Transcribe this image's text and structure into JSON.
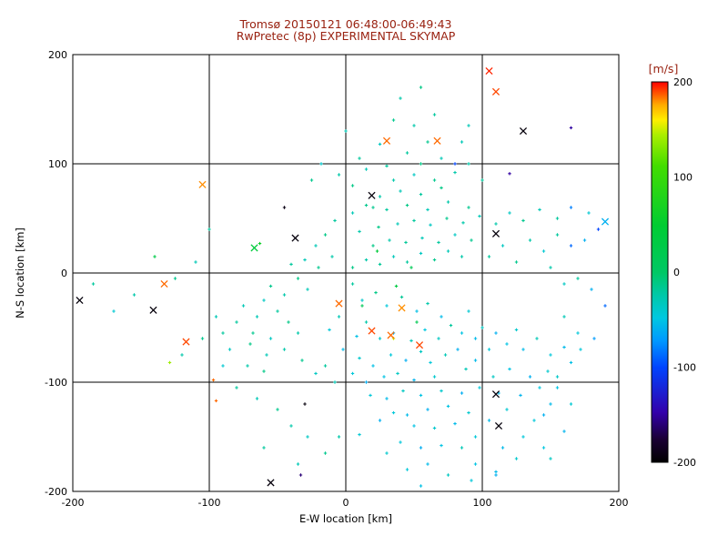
{
  "style": {
    "background": "#ffffff",
    "title_color": "#992211",
    "axis_color": "#000000"
  },
  "chart_data": {
    "type": "scatter",
    "title": "Tromsø 20150121 06:48:00-06:49:43",
    "subtitle": "RwPretec (8p) EXPERIMENTAL SKYMAP",
    "xlabel": "E-W location [km]",
    "ylabel": "N-S location [km]",
    "xlim": [
      -200,
      200
    ],
    "ylim": [
      -200,
      200
    ],
    "xticks": [
      -200,
      -100,
      0,
      100,
      200
    ],
    "yticks": [
      -200,
      -100,
      0,
      100,
      200
    ],
    "gridlines": [
      -100,
      0,
      100
    ],
    "grid": "on",
    "point_value_unit": "m/s",
    "colorbar": {
      "label": "[m/s]",
      "min": -200,
      "max": 200,
      "ticks": [
        200,
        100,
        0,
        -100,
        -200
      ],
      "stops": [
        {
          "t": 0.0,
          "c": "#000000"
        },
        {
          "t": 0.06,
          "c": "#1a0033"
        },
        {
          "t": 0.13,
          "c": "#3300aa"
        },
        {
          "t": 0.25,
          "c": "#0044ff"
        },
        {
          "t": 0.32,
          "c": "#0099ff"
        },
        {
          "t": 0.38,
          "c": "#00c8e0"
        },
        {
          "t": 0.44,
          "c": "#00c8a8"
        },
        {
          "t": 0.5,
          "c": "#00c864"
        },
        {
          "t": 0.62,
          "c": "#00cc33"
        },
        {
          "t": 0.78,
          "c": "#44dd00"
        },
        {
          "t": 0.86,
          "c": "#aaee00"
        },
        {
          "t": 0.9,
          "c": "#ffee00"
        },
        {
          "t": 0.94,
          "c": "#ffaa00"
        },
        {
          "t": 0.97,
          "c": "#ff5500"
        },
        {
          "t": 1.0,
          "c": "#ff0000"
        }
      ]
    },
    "points": [
      [
        5,
        -10,
        -20
      ],
      [
        12,
        -25,
        -38
      ],
      [
        22,
        -18,
        -12
      ],
      [
        30,
        -30,
        -45
      ],
      [
        41,
        -22,
        -18
      ],
      [
        52,
        -35,
        -52
      ],
      [
        60,
        -28,
        -25
      ],
      [
        70,
        -40,
        -55
      ],
      [
        35,
        -55,
        -60
      ],
      [
        25,
        -60,
        -40
      ],
      [
        48,
        -62,
        -30
      ],
      [
        58,
        -52,
        -48
      ],
      [
        15,
        -45,
        -25
      ],
      [
        8,
        -58,
        -52
      ],
      [
        -5,
        -40,
        -30
      ],
      [
        -12,
        -52,
        -45
      ],
      [
        68,
        -60,
        -35
      ],
      [
        77,
        -48,
        -20
      ],
      [
        85,
        -55,
        -50
      ],
      [
        90,
        -35,
        -42
      ],
      [
        95,
        -60,
        -55
      ],
      [
        33,
        -75,
        -45
      ],
      [
        44,
        -80,
        -62
      ],
      [
        55,
        -72,
        -35
      ],
      [
        20,
        -85,
        -52
      ],
      [
        10,
        -78,
        -40
      ],
      [
        -2,
        -70,
        -55
      ],
      [
        62,
        -82,
        -45
      ],
      [
        73,
        -75,
        -30
      ],
      [
        82,
        -70,
        -60
      ],
      [
        28,
        -95,
        -50
      ],
      [
        38,
        -92,
        -35
      ],
      [
        50,
        -98,
        -58
      ],
      [
        65,
        -95,
        -40
      ],
      [
        15,
        -100,
        -62
      ],
      [
        5,
        -92,
        -45
      ],
      [
        88,
        -88,
        -30
      ],
      [
        95,
        -80,
        -55
      ],
      [
        105,
        -70,
        -45
      ],
      [
        100,
        -50,
        -35
      ],
      [
        110,
        -55,
        -60
      ],
      [
        118,
        -65,
        -50
      ],
      [
        125,
        -52,
        -40
      ],
      [
        130,
        -70,
        -55
      ],
      [
        140,
        -60,
        -30
      ],
      [
        150,
        -75,
        -45
      ],
      [
        160,
        -68,
        -55
      ],
      [
        148,
        -90,
        -40
      ],
      [
        135,
        -95,
        -60
      ],
      [
        120,
        -88,
        -50
      ],
      [
        108,
        -95,
        -35
      ],
      [
        112,
        -110,
        -55
      ],
      [
        98,
        -105,
        -45
      ],
      [
        85,
        -110,
        -62
      ],
      [
        70,
        -108,
        -40
      ],
      [
        55,
        -112,
        -50
      ],
      [
        42,
        -108,
        -35
      ],
      [
        30,
        -115,
        -55
      ],
      [
        18,
        -112,
        -45
      ],
      [
        60,
        -125,
        -60
      ],
      [
        75,
        -122,
        -50
      ],
      [
        90,
        -128,
        -40
      ],
      [
        45,
        -130,
        -55
      ],
      [
        35,
        -128,
        -45
      ],
      [
        25,
        -135,
        -60
      ],
      [
        50,
        -140,
        -50
      ],
      [
        65,
        -142,
        -40
      ],
      [
        80,
        -138,
        -55
      ],
      [
        40,
        -155,
        -45
      ],
      [
        55,
        -160,
        -62
      ],
      [
        70,
        -158,
        -50
      ],
      [
        30,
        -165,
        -40
      ],
      [
        85,
        -160,
        -30
      ],
      [
        60,
        -175,
        -55
      ],
      [
        45,
        -180,
        -45
      ],
      [
        75,
        -185,
        -35
      ],
      [
        55,
        -195,
        -52
      ],
      [
        95,
        -150,
        -45
      ],
      [
        105,
        -135,
        -55
      ],
      [
        118,
        -125,
        -42
      ],
      [
        128,
        -112,
        -58
      ],
      [
        142,
        -105,
        -48
      ],
      [
        155,
        -95,
        -38
      ],
      [
        165,
        -82,
        -52
      ],
      [
        172,
        -70,
        -45
      ],
      [
        150,
        -120,
        -55
      ],
      [
        138,
        -135,
        -45
      ],
      [
        160,
        -145,
        -58
      ],
      [
        145,
        -160,
        -48
      ],
      [
        125,
        -170,
        -40
      ],
      [
        110,
        -182,
        -55
      ],
      [
        92,
        -190,
        -45
      ],
      [
        5,
        5,
        -12
      ],
      [
        15,
        12,
        -25
      ],
      [
        25,
        8,
        -18
      ],
      [
        35,
        15,
        -32
      ],
      [
        45,
        10,
        -20
      ],
      [
        55,
        18,
        -35
      ],
      [
        65,
        12,
        -15
      ],
      [
        75,
        20,
        -30
      ],
      [
        85,
        15,
        -25
      ],
      [
        20,
        25,
        -12
      ],
      [
        32,
        30,
        -25
      ],
      [
        44,
        28,
        -18
      ],
      [
        56,
        32,
        -30
      ],
      [
        68,
        28,
        -20
      ],
      [
        80,
        35,
        -35
      ],
      [
        92,
        30,
        -15
      ],
      [
        10,
        38,
        -25
      ],
      [
        24,
        42,
        -12
      ],
      [
        38,
        45,
        -30
      ],
      [
        50,
        48,
        -20
      ],
      [
        62,
        44,
        -35
      ],
      [
        74,
        50,
        -15
      ],
      [
        86,
        46,
        -25
      ],
      [
        98,
        52,
        -30
      ],
      [
        30,
        58,
        -20
      ],
      [
        45,
        62,
        -12
      ],
      [
        60,
        58,
        -30
      ],
      [
        75,
        65,
        -25
      ],
      [
        90,
        60,
        -15
      ],
      [
        55,
        72,
        -20
      ],
      [
        40,
        75,
        -30
      ],
      [
        70,
        78,
        -12
      ],
      [
        25,
        70,
        -25
      ],
      [
        15,
        62,
        -15
      ],
      [
        5,
        55,
        -30
      ],
      [
        -8,
        48,
        -20
      ],
      [
        -15,
        35,
        -12
      ],
      [
        -22,
        25,
        -30
      ],
      [
        -10,
        15,
        -25
      ],
      [
        -20,
        5,
        -15
      ],
      [
        -30,
        12,
        -30
      ],
      [
        -40,
        8,
        -20
      ],
      [
        -35,
        -5,
        -12
      ],
      [
        -28,
        -15,
        -30
      ],
      [
        -45,
        -20,
        -25
      ],
      [
        -55,
        -12,
        -15
      ],
      [
        -60,
        -25,
        -35
      ],
      [
        -50,
        -35,
        -20
      ],
      [
        -65,
        -40,
        -30
      ],
      [
        -42,
        -45,
        -12
      ],
      [
        -35,
        -55,
        -25
      ],
      [
        -55,
        -60,
        -35
      ],
      [
        -68,
        -55,
        -15
      ],
      [
        -75,
        -30,
        -30
      ],
      [
        -80,
        -45,
        -20
      ],
      [
        -70,
        -65,
        -12
      ],
      [
        -58,
        -75,
        -30
      ],
      [
        -45,
        -70,
        -25
      ],
      [
        -32,
        -80,
        -15
      ],
      [
        -22,
        -92,
        -35
      ],
      [
        -15,
        -85,
        -20
      ],
      [
        -8,
        -100,
        -30
      ],
      [
        -60,
        -90,
        -12
      ],
      [
        -72,
        -85,
        -25
      ],
      [
        -85,
        -70,
        -35
      ],
      [
        -90,
        -55,
        -20
      ],
      [
        105,
        15,
        -20
      ],
      [
        115,
        25,
        -35
      ],
      [
        125,
        10,
        -15
      ],
      [
        135,
        30,
        -25
      ],
      [
        145,
        20,
        -42
      ],
      [
        155,
        35,
        -20
      ],
      [
        165,
        25,
        -88
      ],
      [
        175,
        30,
        -60
      ],
      [
        110,
        45,
        -25
      ],
      [
        120,
        55,
        -35
      ],
      [
        130,
        48,
        -15
      ],
      [
        142,
        58,
        -30
      ],
      [
        155,
        50,
        -20
      ],
      [
        165,
        60,
        -80
      ],
      [
        178,
        55,
        -42
      ],
      [
        185,
        40,
        -100
      ],
      [
        150,
        5,
        -25
      ],
      [
        160,
        -10,
        -35
      ],
      [
        170,
        -5,
        -20
      ],
      [
        180,
        -15,
        -60
      ],
      [
        190,
        -30,
        -88
      ],
      [
        160,
        -40,
        -30
      ],
      [
        170,
        -55,
        -45
      ],
      [
        182,
        -60,
        -70
      ],
      [
        155,
        -105,
        -50
      ],
      [
        165,
        -120,
        -42
      ],
      [
        145,
        -130,
        -60
      ],
      [
        130,
        -150,
        -45
      ],
      [
        115,
        -160,
        -55
      ],
      [
        150,
        -170,
        -35
      ],
      [
        95,
        -175,
        -50
      ],
      [
        110,
        -185,
        -60
      ],
      [
        120,
        91,
        -150
      ],
      [
        80,
        100,
        -100
      ],
      [
        165,
        133,
        -150
      ],
      [
        20,
        60,
        -15
      ],
      [
        35,
        85,
        -25
      ],
      [
        50,
        90,
        -35
      ],
      [
        65,
        85,
        -15
      ],
      [
        80,
        92,
        -25
      ],
      [
        30,
        98,
        -20
      ],
      [
        55,
        100,
        -12
      ],
      [
        70,
        105,
        -30
      ],
      [
        45,
        110,
        -20
      ],
      [
        25,
        118,
        -35
      ],
      [
        60,
        120,
        -15
      ],
      [
        90,
        100,
        -25
      ],
      [
        100,
        85,
        -20
      ],
      [
        15,
        95,
        -30
      ],
      [
        5,
        80,
        -12
      ],
      [
        -5,
        90,
        -25
      ],
      [
        -25,
        85,
        -15
      ],
      [
        10,
        105,
        -20
      ],
      [
        85,
        120,
        -30
      ],
      [
        50,
        135,
        -25
      ],
      [
        35,
        140,
        -15
      ],
      [
        65,
        145,
        -20
      ],
      [
        90,
        135,
        -30
      ],
      [
        40,
        160,
        -25
      ],
      [
        55,
        170,
        -12
      ],
      [
        -45,
        60,
        -190
      ],
      [
        -18,
        100,
        -40
      ],
      [
        0,
        130,
        -30
      ],
      [
        -100,
        40,
        -20
      ],
      [
        -110,
        10,
        -30
      ],
      [
        -125,
        -5,
        -15
      ],
      [
        -140,
        15,
        25
      ],
      [
        -155,
        -20,
        -25
      ],
      [
        -170,
        -35,
        -42
      ],
      [
        -185,
        -10,
        -20
      ],
      [
        -95,
        -40,
        -30
      ],
      [
        -105,
        -60,
        -15
      ],
      [
        -120,
        -75,
        -25
      ],
      [
        -90,
        -85,
        -42
      ],
      [
        -80,
        -105,
        -20
      ],
      [
        -65,
        -115,
        -30
      ],
      [
        -50,
        -125,
        -15
      ],
      [
        -40,
        -140,
        -25
      ],
      [
        -28,
        -150,
        -35
      ],
      [
        -60,
        -160,
        -20
      ],
      [
        -35,
        -175,
        -30
      ],
      [
        -15,
        -165,
        -15
      ],
      [
        -5,
        -150,
        -25
      ],
      [
        10,
        -148,
        -42
      ],
      [
        -97,
        -98,
        185
      ],
      [
        -95,
        -117,
        185
      ],
      [
        -129,
        -82,
        140
      ],
      [
        -33,
        -185,
        -160
      ],
      [
        -30,
        -120,
        -195
      ],
      [
        23,
        20,
        40
      ],
      [
        37,
        -12,
        30
      ],
      [
        52,
        -45,
        18
      ],
      [
        12,
        -30,
        10
      ],
      [
        48,
        5,
        15
      ],
      [
        35,
        -60,
        150
      ],
      [
        -63,
        27,
        60
      ]
    ],
    "highlight_points": [
      [
        105,
        185,
        195
      ],
      [
        110,
        166,
        190
      ],
      [
        130,
        130,
        -195
      ],
      [
        30,
        121,
        185
      ],
      [
        67,
        121,
        185
      ],
      [
        -105,
        81,
        180
      ],
      [
        19,
        71,
        -195
      ],
      [
        -37,
        32,
        -195
      ],
      [
        -67,
        23,
        40
      ],
      [
        110,
        36,
        -195
      ],
      [
        -141,
        -34,
        -195
      ],
      [
        -133,
        -10,
        185
      ],
      [
        -195,
        -25,
        -195
      ],
      [
        -117,
        -63,
        190
      ],
      [
        110,
        -111,
        -195
      ],
      [
        112,
        -140,
        -195
      ],
      [
        -55,
        -192,
        -195
      ],
      [
        -5,
        -28,
        185
      ],
      [
        19,
        -53,
        190
      ],
      [
        33,
        -57,
        185
      ],
      [
        54,
        -66,
        190
      ],
      [
        41,
        -32,
        180
      ],
      [
        190,
        47,
        -60
      ]
    ]
  }
}
